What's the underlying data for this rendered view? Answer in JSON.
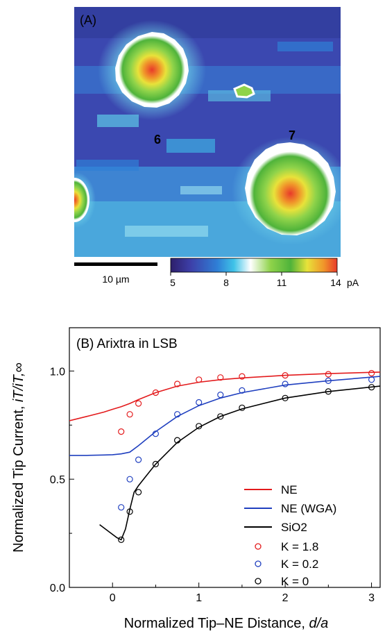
{
  "panel_a": {
    "label": "(A)",
    "particle_labels": [
      "6",
      "7"
    ],
    "scale_bar_label": "10 µm",
    "colorbar": {
      "ticks": [
        "5",
        "8",
        "11",
        "14"
      ],
      "unit": "pA",
      "colors": [
        "#2d1f6b",
        "#3d3fa8",
        "#2f7fd6",
        "#3fc3e8",
        "#ffffff",
        "#8fd34a",
        "#4fb33a",
        "#e8e23a",
        "#f0952a",
        "#e83a2a"
      ]
    }
  },
  "panel_b": {
    "title": "(B) Arixtra in LSB",
    "xlabel": "Normalized Tip–NE Distance, ",
    "xlabel_italic": "d/a",
    "ylabel": "Normalized Tip Current, ",
    "ylabel_math": "iT/iT,∞",
    "legend": {
      "lines": [
        {
          "label": "NE",
          "color": "#e31a1c"
        },
        {
          "label": "NE (WGA)",
          "color": "#1f3fbf"
        },
        {
          "label": "SiO2",
          "color": "#000000"
        }
      ],
      "markers": [
        {
          "label": "K = 1.8",
          "color": "#e31a1c"
        },
        {
          "label": "K = 0.2",
          "color": "#1f3fbf"
        },
        {
          "label": "K = 0",
          "color": "#000000"
        }
      ]
    }
  },
  "chart_data": {
    "type": "line",
    "title": "(B) Arixtra in LSB",
    "xlabel": "Normalized Tip–NE Distance, d/a",
    "ylabel": "Normalized Tip Current, iT/iT,∞",
    "xlim": [
      -0.5,
      3.1
    ],
    "ylim": [
      0.0,
      1.2
    ],
    "x_ticks": [
      0,
      1,
      2,
      3
    ],
    "y_ticks": [
      0.0,
      0.5,
      1.0
    ],
    "x_tick_labels": [
      "0",
      "1",
      "2",
      "3"
    ],
    "y_tick_labels": [
      "0.0",
      "0.5",
      "1.0"
    ],
    "grid": false,
    "legend_position": "bottom-right",
    "series": [
      {
        "name": "NE",
        "kind": "line",
        "color": "#e31a1c",
        "x": [
          -0.5,
          -0.3,
          -0.1,
          0.0,
          0.1,
          0.2,
          0.3,
          0.5,
          0.75,
          1.0,
          1.25,
          1.5,
          2.0,
          2.5,
          3.1
        ],
        "y": [
          0.77,
          0.79,
          0.81,
          0.823,
          0.835,
          0.85,
          0.868,
          0.9,
          0.93,
          0.948,
          0.96,
          0.968,
          0.98,
          0.988,
          0.995
        ]
      },
      {
        "name": "NE (WGA)",
        "kind": "line",
        "color": "#1f3fbf",
        "x": [
          -0.5,
          -0.3,
          -0.1,
          0.0,
          0.1,
          0.2,
          0.3,
          0.5,
          0.75,
          1.0,
          1.25,
          1.5,
          2.0,
          2.5,
          3.1
        ],
        "y": [
          0.61,
          0.61,
          0.612,
          0.613,
          0.617,
          0.625,
          0.655,
          0.72,
          0.79,
          0.84,
          0.875,
          0.9,
          0.935,
          0.955,
          0.975
        ]
      },
      {
        "name": "SiO2",
        "kind": "line",
        "color": "#000000",
        "x": [
          -0.15,
          -0.05,
          0.05,
          0.1,
          0.15,
          0.2,
          0.25,
          0.3,
          0.4,
          0.5,
          0.75,
          1.0,
          1.25,
          1.5,
          2.0,
          2.5,
          3.1
        ],
        "y": [
          0.29,
          0.26,
          0.23,
          0.22,
          0.27,
          0.36,
          0.44,
          0.47,
          0.52,
          0.57,
          0.67,
          0.74,
          0.79,
          0.825,
          0.875,
          0.905,
          0.93
        ]
      },
      {
        "name": "K = 1.8",
        "kind": "marker",
        "color": "#e31a1c",
        "x": [
          0.1,
          0.2,
          0.3,
          0.5,
          0.75,
          1.0,
          1.25,
          1.5,
          2.0,
          2.5,
          3.0
        ],
        "y": [
          0.72,
          0.8,
          0.85,
          0.9,
          0.94,
          0.96,
          0.97,
          0.975,
          0.98,
          0.985,
          0.99
        ]
      },
      {
        "name": "K = 0.2",
        "kind": "marker",
        "color": "#1f3fbf",
        "x": [
          0.1,
          0.2,
          0.3,
          0.5,
          0.75,
          1.0,
          1.25,
          1.5,
          2.0,
          2.5,
          3.0
        ],
        "y": [
          0.37,
          0.5,
          0.59,
          0.71,
          0.8,
          0.855,
          0.89,
          0.91,
          0.94,
          0.955,
          0.96
        ]
      },
      {
        "name": "K = 0",
        "kind": "marker",
        "color": "#000000",
        "x": [
          0.1,
          0.2,
          0.3,
          0.5,
          0.75,
          1.0,
          1.25,
          1.5,
          2.0,
          2.5,
          3.0
        ],
        "y": [
          0.22,
          0.35,
          0.44,
          0.57,
          0.68,
          0.745,
          0.79,
          0.83,
          0.875,
          0.905,
          0.925
        ]
      }
    ]
  }
}
